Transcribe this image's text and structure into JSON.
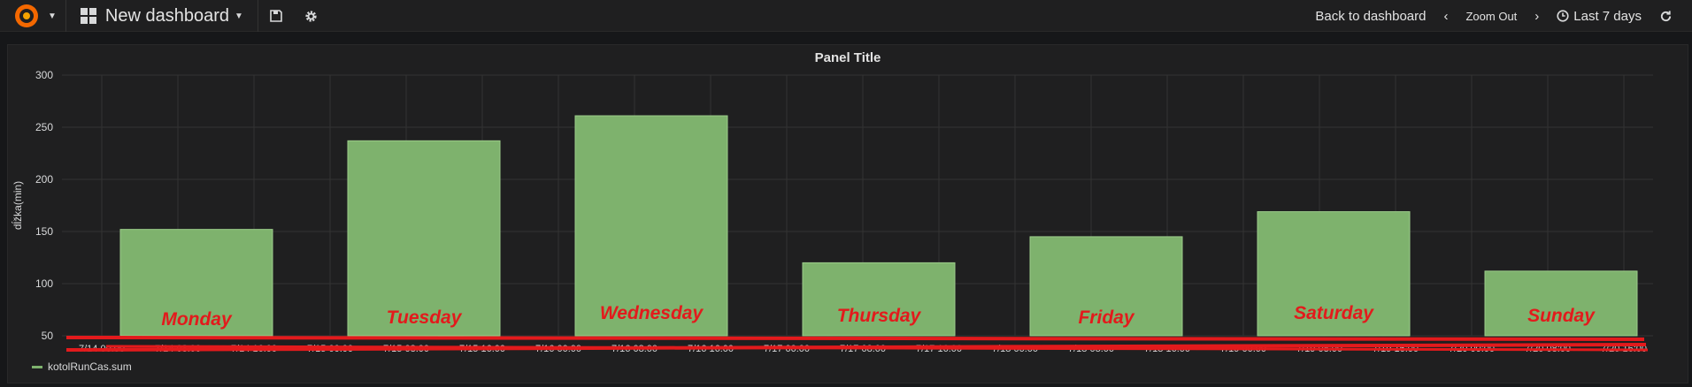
{
  "navbar": {
    "dashboard_title": "New dashboard",
    "back_label": "Back to dashboard",
    "zoom_label": "Zoom Out",
    "time_range": "Last 7 days"
  },
  "icons": {
    "logo": "grafana-logo-icon",
    "dashboard": "grid-icon",
    "save": "save-icon",
    "settings": "gear-icon",
    "time": "clock-icon",
    "refresh": "refresh-icon"
  },
  "colors": {
    "bar": "#7eb26d",
    "annotation": "#e31a1c"
  },
  "chart_data": {
    "type": "bar",
    "title": "Panel Title",
    "ylabel": "dĺžka(min)",
    "ylim": [
      50,
      300
    ],
    "yticks": [
      50,
      100,
      150,
      200,
      250,
      300
    ],
    "xtick_labels": [
      "7/14 00:00",
      "7/14 08:00",
      "7/14 16:00",
      "7/15 00:00",
      "7/15 08:00",
      "7/15 16:00",
      "7/16 00:00",
      "7/16 08:00",
      "7/16 16:00",
      "7/17 00:00",
      "7/17 08:00",
      "7/17 16:00",
      "7/18 00:00",
      "7/18 08:00",
      "7/18 16:00",
      "7/19 00:00",
      "7/19 08:00",
      "7/19 16:00",
      "7/20 00:00",
      "7/20 08:00",
      "7/20 16:00"
    ],
    "categories": [
      "Monday",
      "Tuesday",
      "Wednesday",
      "Thursday",
      "Friday",
      "Saturday",
      "Sunday"
    ],
    "series": [
      {
        "name": "kotolRunCas.sum",
        "values": [
          152,
          237,
          261,
          120,
          145,
          169,
          112
        ]
      }
    ],
    "grid": true,
    "legend_position": "bottom-left"
  }
}
